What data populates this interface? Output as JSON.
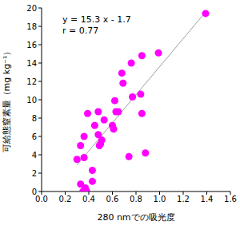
{
  "chart_data": {
    "type": "scatter",
    "x_label": "280 nmでの吸光度",
    "y_label": "可給態窒素量（mg kg⁻¹）",
    "annotations": [
      "y = 15.3 x - 1.7",
      "r = 0.77"
    ],
    "color": "#ff00ff",
    "marker": "circle",
    "x": [
      1.39,
      0.99,
      0.85,
      0.76,
      0.68,
      0.69,
      0.77,
      0.84,
      0.62,
      0.63,
      0.65,
      0.85,
      0.39,
      0.48,
      0.53,
      0.45,
      0.6,
      0.61,
      0.36,
      0.48,
      0.51,
      0.33,
      0.5,
      0.49,
      0.3,
      0.36,
      0.88,
      0.74,
      0.43,
      0.43,
      0.33,
      0.37,
      0.38,
      0.35
    ],
    "values": [
      19.4,
      15.1,
      14.8,
      14.0,
      12.9,
      11.8,
      10.3,
      10.6,
      9.9,
      8.7,
      8.7,
      8.5,
      8.5,
      8.7,
      7.8,
      7.2,
      7.2,
      6.8,
      6.0,
      6.2,
      5.6,
      5.0,
      5.2,
      5.0,
      3.5,
      3.7,
      4.2,
      3.8,
      2.3,
      1.1,
      0.8,
      0.4,
      0.1,
      0.0
    ],
    "trend_line": {
      "x": [
        0.3,
        1.4
      ],
      "values": [
        2.89,
        19.72
      ],
      "color": "#a0a0a0"
    },
    "xlim": [
      0,
      1.6
    ],
    "xticks": [
      {
        "value": 0,
        "label": "0.0"
      },
      0.2,
      0.4,
      0.6,
      0.8,
      {
        "value": 1,
        "label": "1.0"
      },
      1.2,
      1.4,
      1.6
    ],
    "ylim": [
      0,
      20
    ],
    "yticks": [
      0,
      2,
      4,
      6,
      8,
      10,
      12,
      14,
      16,
      18,
      20
    ],
    "grid": false
  }
}
